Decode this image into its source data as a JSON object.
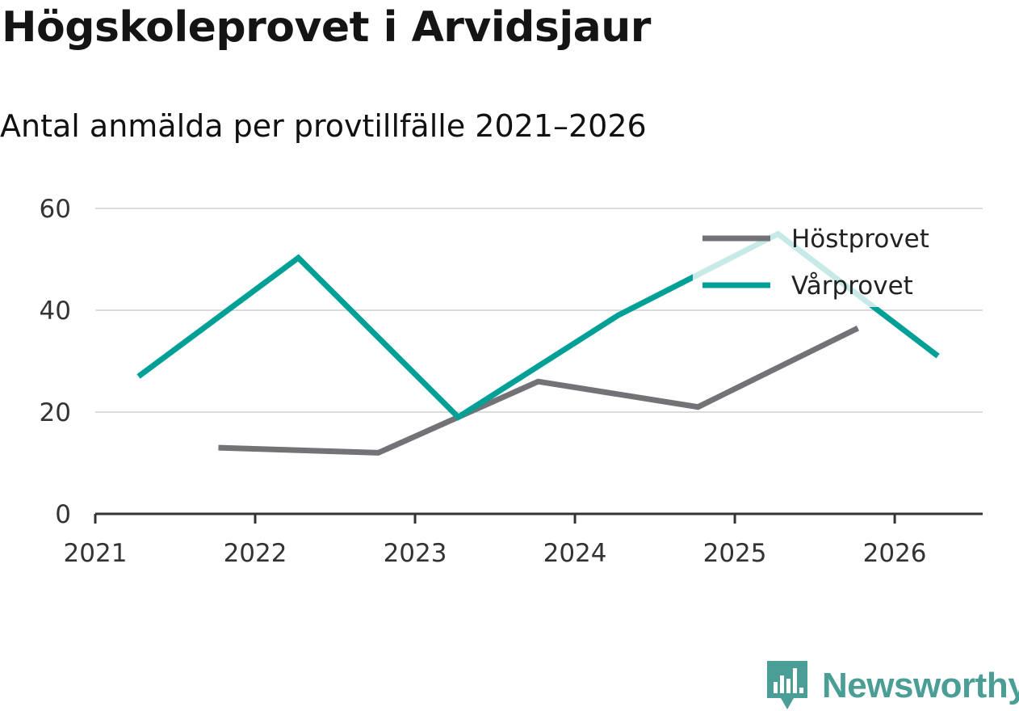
{
  "title": "Högskoleprovet i Arvidsjaur",
  "subtitle": "Antal anmälda per provtillfälle 2021–2026",
  "brand": {
    "name": "Newsworthy",
    "icon": "newsworthy-logo-icon",
    "color": "#4a9e95"
  },
  "chart_data": {
    "type": "line",
    "title": "Högskoleprovet i Arvidsjaur",
    "subtitle": "Antal anmälda per provtillfälle 2021–2026",
    "xlabel": "",
    "ylabel": "",
    "xlim": [
      2021,
      2026.55
    ],
    "ylim": [
      0,
      60
    ],
    "x_ticks": [
      "2021",
      "2022",
      "2023",
      "2024",
      "2025",
      "2026"
    ],
    "y_ticks": [
      0,
      20,
      40,
      60
    ],
    "grid": "horizontal",
    "legend_position": "top-right",
    "series": [
      {
        "name": "Höstprovet",
        "color": "#737277",
        "points": [
          {
            "x": 2021.77,
            "y": 13
          },
          {
            "x": 2022.77,
            "y": 12
          },
          {
            "x": 2023.77,
            "y": 26
          },
          {
            "x": 2024.77,
            "y": 21
          },
          {
            "x": 2025.77,
            "y": 36.5
          }
        ]
      },
      {
        "name": "Vårprovet",
        "color": "#00a097",
        "points": [
          {
            "x": 2021.27,
            "y": 27
          },
          {
            "x": 2022.27,
            "y": 50.3
          },
          {
            "x": 2023.27,
            "y": 19
          },
          {
            "x": 2024.27,
            "y": 39
          },
          {
            "x": 2025.27,
            "y": 55
          },
          {
            "x": 2026.27,
            "y": 31
          }
        ]
      }
    ]
  }
}
